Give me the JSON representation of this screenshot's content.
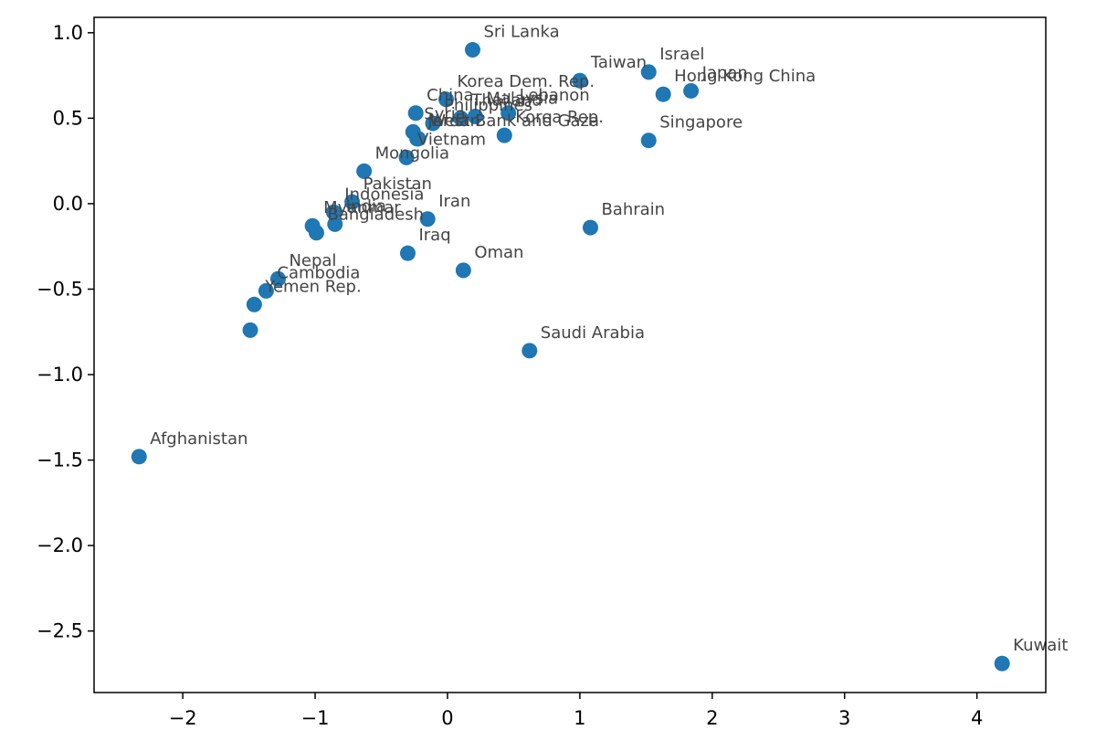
{
  "chart_data": {
    "type": "scatter",
    "title": "",
    "xlabel": "",
    "ylabel": "",
    "xlim": [
      -2.67,
      4.52
    ],
    "ylim": [
      -2.86,
      1.09
    ],
    "xticks": [
      -2,
      -1,
      0,
      1,
      2,
      3,
      4
    ],
    "yticks": [
      1.0,
      0.5,
      0.0,
      -0.5,
      -1.0,
      -1.5,
      -2.0,
      -2.5
    ],
    "xtick_labels": [
      "−2",
      "−1",
      "0",
      "1",
      "2",
      "3",
      "4"
    ],
    "ytick_labels": [
      "1.0",
      "0.5",
      "0.0",
      "−0.5",
      "−1.0",
      "−1.5",
      "−2.0",
      "−2.5"
    ],
    "grid": false,
    "marker_color": "#1f77b4",
    "label_color": "#444444",
    "points": [
      {
        "label": "Sri Lanka",
        "x": 0.19,
        "y": 0.9
      },
      {
        "label": "Taiwan",
        "x": 1.0,
        "y": 0.72
      },
      {
        "label": "Israel",
        "x": 1.52,
        "y": 0.77
      },
      {
        "label": "Japan",
        "x": 1.84,
        "y": 0.66
      },
      {
        "label": "Hong Kong China",
        "x": 1.63,
        "y": 0.64
      },
      {
        "label": "Korea Dem. Rep.",
        "x": -0.01,
        "y": 0.61
      },
      {
        "label": "Lebanon",
        "x": 0.46,
        "y": 0.53
      },
      {
        "label": "China",
        "x": -0.24,
        "y": 0.53
      },
      {
        "label": "Malaysia",
        "x": 0.21,
        "y": 0.51
      },
      {
        "label": "Thailand",
        "x": 0.1,
        "y": 0.5
      },
      {
        "label": "Philippines",
        "x": -0.11,
        "y": 0.47
      },
      {
        "label": "Syria",
        "x": -0.26,
        "y": 0.42
      },
      {
        "label": "Korea Rep.",
        "x": 0.43,
        "y": 0.4
      },
      {
        "label": "Singapore",
        "x": 1.52,
        "y": 0.37
      },
      {
        "label": "West Bank and Gaza",
        "x": -0.22,
        "y": 0.38
      },
      {
        "label": "Jordan",
        "x": -0.23,
        "y": 0.38
      },
      {
        "label": "Vietnam",
        "x": -0.31,
        "y": 0.27
      },
      {
        "label": "Mongolia",
        "x": -0.63,
        "y": 0.19
      },
      {
        "label": "Pakistan",
        "x": -0.72,
        "y": 0.01
      },
      {
        "label": "Indonesia",
        "x": -0.86,
        "y": -0.05
      },
      {
        "label": "Myanmar",
        "x": -1.02,
        "y": -0.13
      },
      {
        "label": "India",
        "x": -0.85,
        "y": -0.12
      },
      {
        "label": "Iran",
        "x": -0.15,
        "y": -0.09
      },
      {
        "label": "Bahrain",
        "x": 1.08,
        "y": -0.14
      },
      {
        "label": "Iraq",
        "x": -0.3,
        "y": -0.29
      },
      {
        "label": "Oman",
        "x": 0.12,
        "y": -0.39
      },
      {
        "label": "Bangladesh",
        "x": -0.99,
        "y": -0.17
      },
      {
        "label": "Nepal",
        "x": -1.28,
        "y": -0.44
      },
      {
        "label": "Cambodia",
        "x": -1.37,
        "y": -0.51
      },
      {
        "label": "Yemen Rep.",
        "x": -1.46,
        "y": -0.59
      },
      {
        "label": "",
        "x": -1.49,
        "y": -0.74
      },
      {
        "label": "Saudi Arabia",
        "x": 0.62,
        "y": -0.86
      },
      {
        "label": "Afghanistan",
        "x": -2.33,
        "y": -1.48
      },
      {
        "label": "Kuwait",
        "x": 4.19,
        "y": -2.69
      }
    ]
  }
}
